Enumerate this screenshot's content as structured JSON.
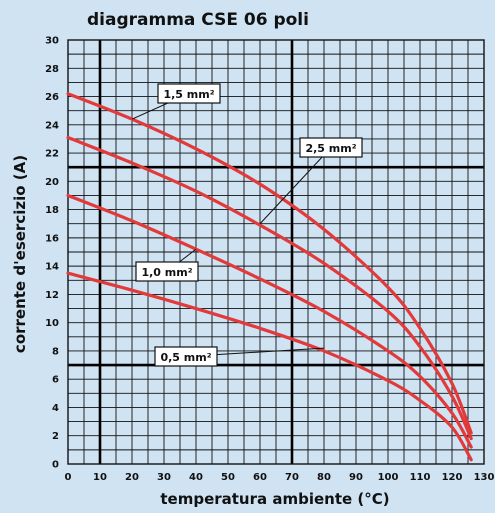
{
  "chart_data": {
    "type": "line",
    "title": "diagramma CSE 06 poli",
    "xlabel": "temperatura ambiente (°C)",
    "ylabel": "corrente d'esercizio (A)",
    "xlim": [
      0,
      130
    ],
    "ylim": [
      0,
      30
    ],
    "x_ticks": [
      0,
      10,
      20,
      30,
      40,
      50,
      60,
      70,
      80,
      90,
      100,
      110,
      120,
      130
    ],
    "y_ticks": [
      0,
      2,
      4,
      6,
      8,
      10,
      12,
      14,
      16,
      18,
      20,
      22,
      24,
      26,
      28,
      30
    ],
    "x_tick_labels": [
      "0",
      "10",
      "20",
      "30",
      "40",
      "50",
      "60",
      "70",
      "80",
      "90",
      "100",
      "110",
      "120",
      "130"
    ],
    "y_tick_labels": [
      "0",
      "2",
      "4",
      "6",
      "8",
      "10",
      "12",
      "14",
      "16",
      "18",
      "20",
      "22",
      "24",
      "26",
      "28",
      "30"
    ],
    "minor_grid_x": 5,
    "minor_grid_y": 1,
    "major_lines": {
      "x": [
        10,
        70
      ],
      "y": [
        7,
        21
      ]
    },
    "grid": true,
    "series_color": "#e23a3a",
    "series": [
      {
        "name": "1,5 mm²",
        "x": [
          0,
          20,
          40,
          60,
          80,
          100,
          110,
          120,
          126
        ],
        "y": [
          26.2,
          24.4,
          22.3,
          19.8,
          16.6,
          12.5,
          9.6,
          5.7,
          2.2
        ]
      },
      {
        "name": "2,5 mm²",
        "x": [
          0,
          20,
          40,
          60,
          80,
          100,
          110,
          120,
          126
        ],
        "y": [
          23.1,
          21.3,
          19.3,
          16.9,
          14.2,
          10.8,
          8.3,
          4.8,
          1.8
        ]
      },
      {
        "name": "1,0 mm²",
        "x": [
          0,
          20,
          40,
          60,
          80,
          100,
          110,
          120,
          126
        ],
        "y": [
          19.0,
          17.2,
          15.2,
          13.1,
          10.8,
          8.0,
          6.2,
          3.6,
          1.2
        ]
      },
      {
        "name": "0,5 mm²",
        "x": [
          0,
          20,
          40,
          60,
          80,
          100,
          110,
          120,
          126
        ],
        "y": [
          13.5,
          12.3,
          11.0,
          9.6,
          8.0,
          5.9,
          4.5,
          2.6,
          0.3
        ]
      }
    ],
    "annotations": [
      {
        "text": "1,5 mm²",
        "series": 0,
        "anchor_x": 20,
        "anchor_y": 24.4
      },
      {
        "text": "2,5 mm²",
        "series": 1,
        "anchor_x": 60,
        "anchor_y": 17.0
      },
      {
        "text": "1,0 mm²",
        "series": 2,
        "anchor_x": 40,
        "anchor_y": 15.2
      },
      {
        "text": "0,5 mm²",
        "series": 3,
        "anchor_x": 80,
        "anchor_y": 8.2
      }
    ]
  }
}
